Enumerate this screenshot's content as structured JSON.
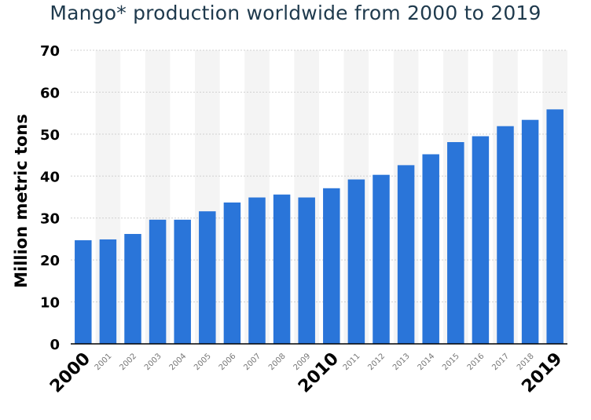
{
  "chart_data": {
    "type": "bar",
    "title": "Mango* production worldwide from 2000 to 2019",
    "xlabel": "",
    "ylabel": "Million metric tons",
    "ylim": [
      0,
      70
    ],
    "yticks": [
      0,
      10,
      20,
      30,
      40,
      50,
      60,
      70
    ],
    "grid": true,
    "categories": [
      "2000",
      "2001",
      "2002",
      "2003",
      "2004",
      "2005",
      "2006",
      "2007",
      "2008",
      "2009",
      "2010",
      "2011",
      "2012",
      "2013",
      "2014",
      "2015",
      "2016",
      "2017",
      "2018",
      "2019"
    ],
    "emphasized_categories": [
      "2000",
      "2010",
      "2019"
    ],
    "values": [
      24.7,
      24.9,
      26.2,
      29.6,
      29.6,
      31.6,
      33.7,
      34.9,
      35.6,
      34.9,
      37.1,
      39.2,
      40.3,
      42.6,
      45.2,
      48.1,
      49.5,
      51.9,
      53.4,
      55.9
    ],
    "colors": {
      "bar": "#2a75d9",
      "band": "#f4f4f4",
      "grid": "#d0d0d0",
      "axis": "#000000"
    }
  }
}
